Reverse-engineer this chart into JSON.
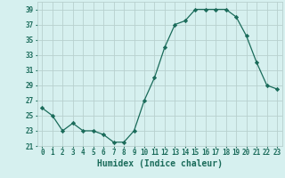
{
  "x": [
    0,
    1,
    2,
    3,
    4,
    5,
    6,
    7,
    8,
    9,
    10,
    11,
    12,
    13,
    14,
    15,
    16,
    17,
    18,
    19,
    20,
    21,
    22,
    23
  ],
  "y": [
    26,
    25,
    23,
    24,
    23,
    23,
    22.5,
    21.5,
    21.5,
    23,
    27,
    30,
    34,
    37,
    37.5,
    39,
    39,
    39,
    39,
    38,
    35.5,
    32,
    29,
    28.5
  ],
  "line_color": "#1a6b5a",
  "marker": "D",
  "markersize": 2.2,
  "bg_color": "#d6f0ef",
  "grid_color": "#b8d0ce",
  "xlabel": "Humidex (Indice chaleur)",
  "xlim": [
    -0.5,
    23.5
  ],
  "ylim": [
    21,
    40
  ],
  "yticks": [
    21,
    23,
    25,
    27,
    29,
    31,
    33,
    35,
    37,
    39
  ],
  "xticks": [
    0,
    1,
    2,
    3,
    4,
    5,
    6,
    7,
    8,
    9,
    10,
    11,
    12,
    13,
    14,
    15,
    16,
    17,
    18,
    19,
    20,
    21,
    22,
    23
  ],
  "tick_color": "#1a6b5a",
  "xlabel_fontsize": 7,
  "tick_fontsize": 5.5
}
